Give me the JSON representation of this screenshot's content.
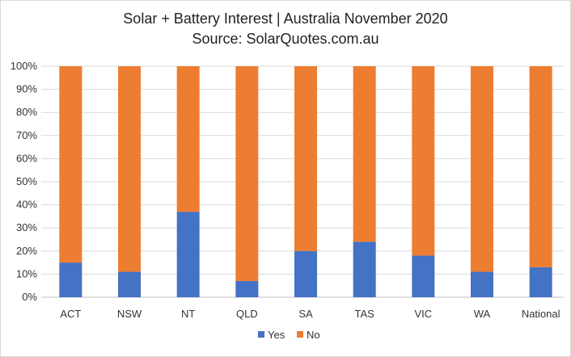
{
  "chart_data": {
    "type": "bar",
    "stacked": true,
    "title": "Solar + Battery Interest | Australia November 2020",
    "subtitle": "Source: SolarQuotes.com.au",
    "categories": [
      "ACT",
      "NSW",
      "NT",
      "QLD",
      "SA",
      "TAS",
      "VIC",
      "WA",
      "National"
    ],
    "series": [
      {
        "name": "Yes",
        "color": "#4472C4",
        "values": [
          15,
          11,
          37,
          7,
          20,
          24,
          18,
          11,
          13
        ]
      },
      {
        "name": "No",
        "color": "#ED7D31",
        "values": [
          85,
          89,
          63,
          93,
          80,
          76,
          82,
          89,
          87
        ]
      }
    ],
    "ylim": [
      0,
      100
    ],
    "yticks": [
      "0%",
      "10%",
      "20%",
      "30%",
      "40%",
      "50%",
      "60%",
      "70%",
      "80%",
      "90%",
      "100%"
    ],
    "grid": true,
    "legend": "bottom"
  }
}
